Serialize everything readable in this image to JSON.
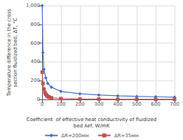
{
  "chart_data": {
    "type": "line",
    "xlabel": "Coefficient  of effective heat conductivity of fluidized\nbed λef, W/mK",
    "ylabel": "Temperature difference in the cross\nsection fluidized bed, ΔT, °C",
    "xlim": [
      0,
      700
    ],
    "ylim": [
      0,
      1000
    ],
    "xticks": [
      0,
      100,
      200,
      300,
      400,
      500,
      600,
      700
    ],
    "yticks": [
      0,
      200,
      400,
      600,
      800,
      1000
    ],
    "grid": true,
    "legend": "bottom",
    "series": [
      {
        "name": "ΔR=200мм",
        "color": "#4472C4",
        "marker": "diamond",
        "x": [
          1,
          5,
          10,
          20,
          30,
          50,
          100,
          200,
          300,
          400,
          500,
          600,
          700
        ],
        "values": [
          1000,
          500,
          320,
          230,
          170,
          130,
          85,
          60,
          47,
          38,
          32,
          28,
          24
        ]
      },
      {
        "name": "ΔR=35мм",
        "color": "#C0504D",
        "marker": "square",
        "x": [
          1,
          5,
          10,
          15,
          20,
          25,
          30,
          35,
          40,
          50,
          100,
          200,
          300,
          400,
          500,
          600,
          700
        ],
        "values": [
          290,
          170,
          110,
          75,
          55,
          42,
          33,
          26,
          22,
          16,
          8,
          4,
          3,
          2,
          2,
          1,
          1
        ]
      }
    ]
  }
}
